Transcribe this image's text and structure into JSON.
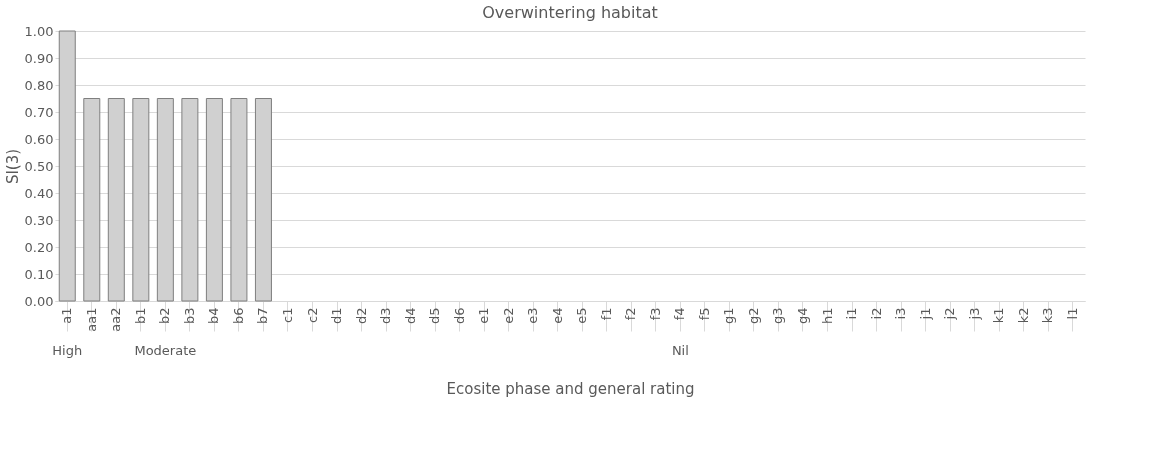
{
  "chart_data": {
    "type": "bar",
    "title": "Overwintering habitat",
    "xlabel": "Ecosite phase and general rating",
    "ylabel": "SI(3)",
    "categories": [
      "a1",
      "aa1",
      "aa2",
      "b1",
      "b2",
      "b3",
      "b4",
      "b6",
      "b7",
      "c1",
      "c2",
      "d1",
      "d2",
      "d3",
      "d4",
      "d5",
      "d6",
      "e1",
      "e2",
      "e3",
      "e4",
      "e5",
      "f1",
      "f2",
      "f3",
      "f4",
      "f5",
      "g1",
      "g2",
      "g3",
      "g4",
      "h1",
      "i1",
      "i2",
      "i3",
      "j1",
      "j2",
      "j3",
      "k1",
      "k2",
      "k3",
      "l1"
    ],
    "values": [
      1,
      0.75,
      0.75,
      0.75,
      0.75,
      0.75,
      0.75,
      0.75,
      0.75,
      0,
      0,
      0,
      0,
      0,
      0,
      0,
      0,
      0,
      0,
      0,
      0,
      0,
      0,
      0,
      0,
      0,
      0,
      0,
      0,
      0,
      0,
      0,
      0,
      0,
      0,
      0,
      0,
      0,
      0,
      0,
      0,
      0
    ],
    "color": "#d0d0d0",
    "ylim": [
      0,
      1
    ],
    "yticks": [
      {
        "value": 0,
        "label": "0.00"
      },
      {
        "value": 0.1,
        "label": "0.10"
      },
      {
        "value": 0.2,
        "label": "0.20"
      },
      {
        "value": 0.3,
        "label": "0.30"
      },
      {
        "value": 0.4,
        "label": "0.40"
      },
      {
        "value": 0.5,
        "label": "0.50"
      },
      {
        "value": 0.6,
        "label": "0.60"
      },
      {
        "value": 0.7,
        "label": "0.70"
      },
      {
        "value": 0.8,
        "label": "0.80"
      },
      {
        "value": 0.9,
        "label": "0.90"
      },
      {
        "value": 1,
        "label": "1.00"
      }
    ],
    "grid": "y",
    "annotations": [
      {
        "text": "High",
        "x": "a1"
      },
      {
        "text": "Moderate",
        "x": "b2"
      },
      {
        "text": "Nil",
        "x": "f4"
      }
    ]
  }
}
